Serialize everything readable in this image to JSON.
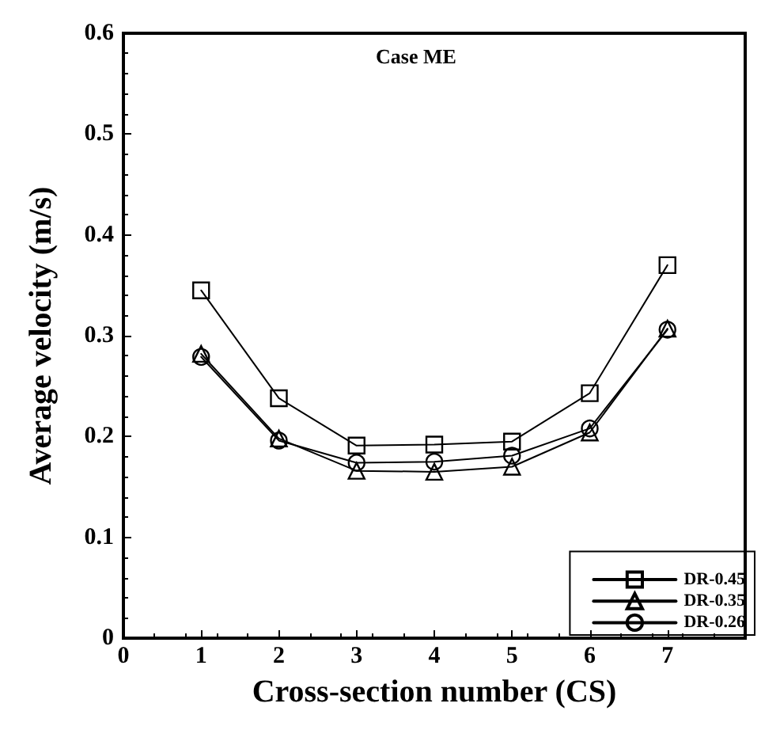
{
  "chart_data": {
    "type": "line",
    "title": "Case ME",
    "xlabel": "Cross-section number (CS)",
    "ylabel": "Average velocity (m/s)",
    "x": [
      1,
      2,
      3,
      4,
      5,
      6,
      7
    ],
    "series": [
      {
        "name": "DR-0.45",
        "color": "#000000",
        "marker": "square",
        "values": [
          0.345,
          0.238,
          0.191,
          0.192,
          0.195,
          0.243,
          0.37
        ]
      },
      {
        "name": "DR-0.35",
        "color": "#000000",
        "marker": "triangle",
        "values": [
          0.282,
          0.198,
          0.166,
          0.165,
          0.17,
          0.204,
          0.307
        ]
      },
      {
        "name": "DR-0.26",
        "color": "#000000",
        "marker": "circle",
        "values": [
          0.279,
          0.196,
          0.174,
          0.175,
          0.181,
          0.208,
          0.306
        ]
      }
    ],
    "xlim": [
      0,
      8
    ],
    "xticks": [
      0,
      1,
      2,
      3,
      4,
      5,
      6,
      7
    ],
    "ylim": [
      0,
      0.6
    ],
    "yticks": [
      0,
      0.1,
      0.2,
      0.3,
      0.4,
      0.5,
      0.6
    ],
    "grid": false,
    "legend": "bottom right",
    "line_style": "solid"
  }
}
